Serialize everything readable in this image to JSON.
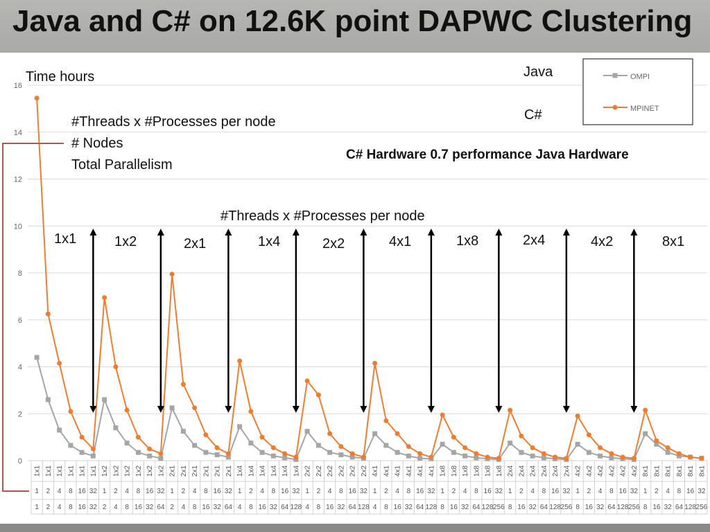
{
  "title": "Java  and C# on 12.6K point DAPWC Clustering",
  "annotations": {
    "y_label": "Time hours",
    "row_legend": [
      "#Threads x #Processes per node",
      "# Nodes",
      "Total Parallelism"
    ],
    "hardware_note": "C# Hardware 0.7 performance Java Hardware",
    "group_header": "#Threads x #Processes per node",
    "lang_java": "Java",
    "lang_csharp": "C#"
  },
  "colors": {
    "ompi": "#a5a5a5",
    "mpinet": "#ed7d31",
    "grid": "#d9d9d9",
    "bracket": "#c0504d"
  },
  "chart_data": {
    "type": "line",
    "ylabel": "Time hours",
    "ylim": [
      0,
      16
    ],
    "yticks": [
      0,
      2,
      4,
      6,
      8,
      10,
      12,
      14,
      16
    ],
    "grid": true,
    "legend_position": "top-right",
    "legend": [
      "OMPI",
      "MPINET"
    ],
    "groups": [
      {
        "label": "1x1",
        "nodes": [
          1,
          2,
          4,
          8,
          16,
          32
        ],
        "parallelism": [
          1,
          2,
          4,
          8,
          16,
          32
        ]
      },
      {
        "label": "1x2",
        "nodes": [
          1,
          2,
          4,
          8,
          16,
          32
        ],
        "parallelism": [
          2,
          4,
          8,
          16,
          32,
          64
        ]
      },
      {
        "label": "2x1",
        "nodes": [
          1,
          2,
          4,
          8,
          16,
          32
        ],
        "parallelism": [
          2,
          4,
          8,
          16,
          32,
          64
        ]
      },
      {
        "label": "1x4",
        "nodes": [
          1,
          2,
          4,
          8,
          16,
          32
        ],
        "parallelism": [
          4,
          8,
          16,
          32,
          64,
          128
        ]
      },
      {
        "label": "2x2",
        "nodes": [
          1,
          2,
          4,
          8,
          16,
          32
        ],
        "parallelism": [
          4,
          8,
          16,
          32,
          64,
          128
        ]
      },
      {
        "label": "4x1",
        "nodes": [
          1,
          2,
          4,
          8,
          16,
          32
        ],
        "parallelism": [
          4,
          8,
          16,
          32,
          64,
          128
        ]
      },
      {
        "label": "1x8",
        "nodes": [
          1,
          2,
          4,
          8,
          16,
          32
        ],
        "parallelism": [
          8,
          16,
          32,
          64,
          128,
          256
        ]
      },
      {
        "label": "2x4",
        "nodes": [
          1,
          2,
          4,
          8,
          16,
          32
        ],
        "parallelism": [
          8,
          16,
          32,
          64,
          128,
          256
        ]
      },
      {
        "label": "4x2",
        "nodes": [
          1,
          2,
          4,
          8,
          16,
          32
        ],
        "parallelism": [
          8,
          16,
          32,
          64,
          128,
          256
        ]
      },
      {
        "label": "8x1",
        "nodes": [
          1,
          2,
          4,
          8,
          16,
          32
        ],
        "parallelism": [
          8,
          16,
          32,
          64,
          128,
          256
        ]
      }
    ],
    "series": [
      {
        "name": "OMPI",
        "values": [
          4.4,
          2.6,
          1.3,
          0.65,
          0.35,
          0.2,
          2.6,
          1.4,
          0.75,
          0.35,
          0.2,
          0.1,
          2.25,
          1.25,
          0.65,
          0.35,
          0.25,
          0.15,
          1.45,
          0.75,
          0.35,
          0.2,
          0.12,
          0.05,
          1.25,
          0.65,
          0.35,
          0.25,
          0.15,
          0.1,
          1.15,
          0.65,
          0.35,
          0.2,
          0.1,
          0.08,
          0.7,
          0.35,
          0.2,
          0.12,
          0.08,
          0.05,
          0.75,
          0.35,
          0.2,
          0.12,
          0.08,
          0.05,
          0.7,
          0.35,
          0.2,
          0.12,
          0.08,
          0.05,
          1.15,
          0.7,
          0.35,
          0.2,
          0.15,
          0.1
        ]
      },
      {
        "name": "MPINET",
        "values": [
          15.45,
          6.25,
          4.15,
          2.1,
          1.0,
          0.5,
          6.95,
          4.0,
          2.15,
          1.0,
          0.5,
          0.3,
          7.95,
          3.25,
          2.25,
          1.1,
          0.55,
          0.3,
          4.25,
          2.1,
          1.0,
          0.55,
          0.3,
          0.15,
          3.4,
          2.8,
          1.15,
          0.6,
          0.3,
          0.15,
          4.15,
          1.7,
          1.15,
          0.6,
          0.3,
          0.15,
          1.95,
          1.0,
          0.55,
          0.3,
          0.15,
          0.1,
          2.15,
          1.05,
          0.55,
          0.3,
          0.15,
          0.1,
          1.9,
          1.1,
          0.55,
          0.3,
          0.15,
          0.1,
          2.15,
          0.85,
          0.55,
          0.3,
          0.15,
          0.1
        ]
      }
    ]
  }
}
